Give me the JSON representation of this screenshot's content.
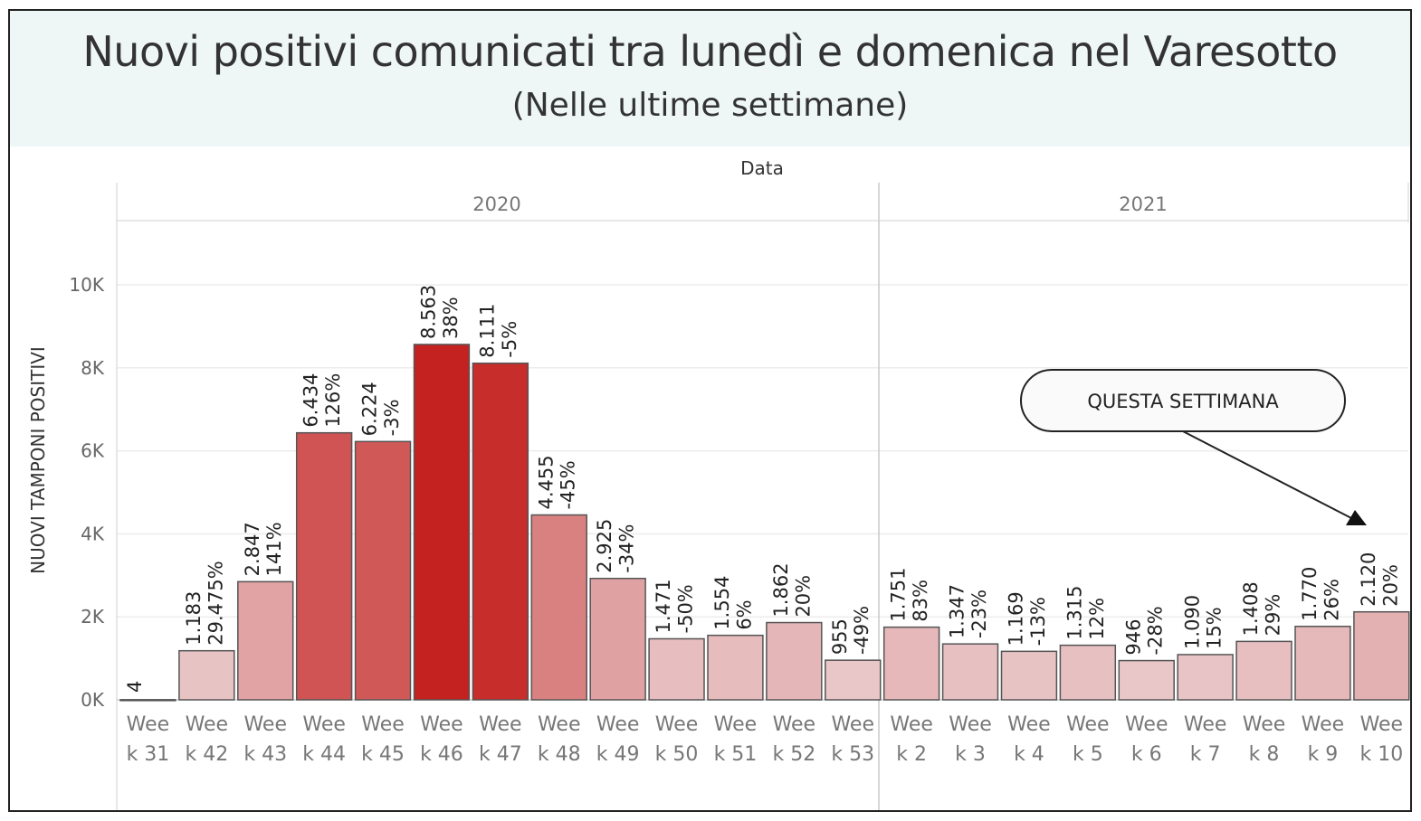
{
  "header": {
    "title": "Nuovi positivi comunicati tra lunedì e domenica nel Varesotto",
    "subtitle": "(Nelle ultime settimane)"
  },
  "chart_data": {
    "type": "bar",
    "column_header": "Data",
    "ylabel": "NUOVI TAMPONI POSITIVI",
    "ylim": [
      0,
      11000
    ],
    "yticks": [
      0,
      2000,
      4000,
      6000,
      8000,
      10000
    ],
    "ytick_labels": [
      "0K",
      "2K",
      "4K",
      "6K",
      "8K",
      "10K"
    ],
    "grid": true,
    "groups": [
      {
        "name": "2020",
        "start": 0,
        "count": 13
      },
      {
        "name": "2021",
        "start": 13,
        "count": 9
      }
    ],
    "categories": [
      "Week 31",
      "Week 42",
      "Week 43",
      "Week 44",
      "Week 45",
      "Week 46",
      "Week 47",
      "Week 48",
      "Week 49",
      "Week 50",
      "Week 51",
      "Week 52",
      "Week 53",
      "Week 2",
      "Week 3",
      "Week 4",
      "Week 5",
      "Week 6",
      "Week 7",
      "Week 8",
      "Week 9",
      "Week 10"
    ],
    "category_lines": [
      [
        "Wee",
        "k 31"
      ],
      [
        "Wee",
        "k 42"
      ],
      [
        "Wee",
        "k 43"
      ],
      [
        "Wee",
        "k 44"
      ],
      [
        "Wee",
        "k 45"
      ],
      [
        "Wee",
        "k 46"
      ],
      [
        "Wee",
        "k 47"
      ],
      [
        "Wee",
        "k 48"
      ],
      [
        "Wee",
        "k 49"
      ],
      [
        "Wee",
        "k 50"
      ],
      [
        "Wee",
        "k 51"
      ],
      [
        "Wee",
        "k 52"
      ],
      [
        "Wee",
        "k 53"
      ],
      [
        "Wee",
        "k 2"
      ],
      [
        "Wee",
        "k 3"
      ],
      [
        "Wee",
        "k 4"
      ],
      [
        "Wee",
        "k 5"
      ],
      [
        "Wee",
        "k 6"
      ],
      [
        "Wee",
        "k 7"
      ],
      [
        "Wee",
        "k 8"
      ],
      [
        "Wee",
        "k 9"
      ],
      [
        "Wee",
        "k 10"
      ]
    ],
    "values": [
      4,
      1183,
      2847,
      6434,
      6224,
      8563,
      8111,
      4455,
      2925,
      1471,
      1554,
      1862,
      955,
      1751,
      1347,
      1169,
      1315,
      946,
      1090,
      1408,
      1770,
      2120
    ],
    "value_labels": [
      "4",
      "1.183",
      "2.847",
      "6.434",
      "6.224",
      "8.563",
      "8.111",
      "4.455",
      "2.925",
      "1.471",
      "1.554",
      "1.862",
      "955",
      "1.751",
      "1.347",
      "1.169",
      "1.315",
      "946",
      "1.090",
      "1.408",
      "1.770",
      "2.120"
    ],
    "pct_labels": [
      "",
      "29.475%",
      "141%",
      "126%",
      "-3%",
      "38%",
      "-5%",
      "-45%",
      "-34%",
      "-50%",
      "6%",
      "20%",
      "-49%",
      "83%",
      "-23%",
      "-13%",
      "12%",
      "-28%",
      "15%",
      "29%",
      "26%",
      "20%"
    ],
    "color_scale": {
      "low": "#ecd5d7",
      "high": "#c42220"
    }
  },
  "annotation": {
    "label": "QUESTA SETTIMANA"
  }
}
